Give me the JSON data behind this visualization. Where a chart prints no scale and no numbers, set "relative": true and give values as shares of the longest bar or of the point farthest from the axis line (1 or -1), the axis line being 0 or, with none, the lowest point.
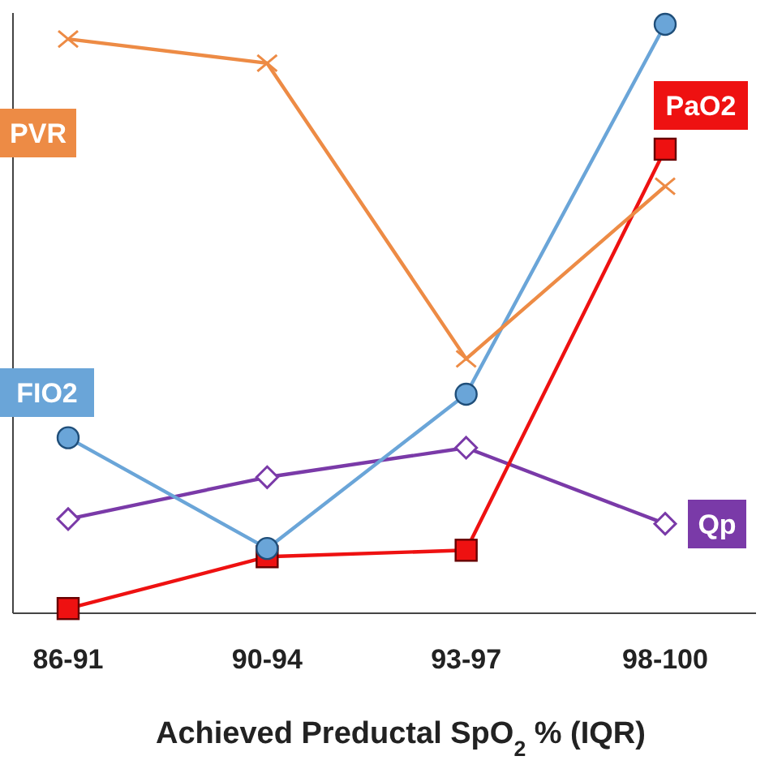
{
  "chart_data": {
    "type": "line",
    "relative": true,
    "xlabel": "Achieved Preductal SpO$_{2}$ % (IQR)",
    "categories": [
      "86-91",
      "90-94",
      "93-97",
      "98-100"
    ],
    "series": [
      {
        "name": "PVR",
        "color": "#ed8b45",
        "marker": "cross",
        "values": [
          0.975,
          0.934,
          0.432,
          0.725
        ]
      },
      {
        "name": "FIO2",
        "color": "#6aa5d8",
        "marker": "circle",
        "values": [
          0.298,
          0.11,
          0.372,
          1
        ]
      },
      {
        "name": "PaO2",
        "color": "#ee1111",
        "marker": "square",
        "values": [
          0.008,
          0.096,
          0.107,
          0.788
        ]
      },
      {
        "name": "Qp",
        "color": "#7a3aa8",
        "marker": "diamond",
        "values": [
          0.16,
          0.231,
          0.281,
          0.152
        ]
      }
    ]
  }
}
